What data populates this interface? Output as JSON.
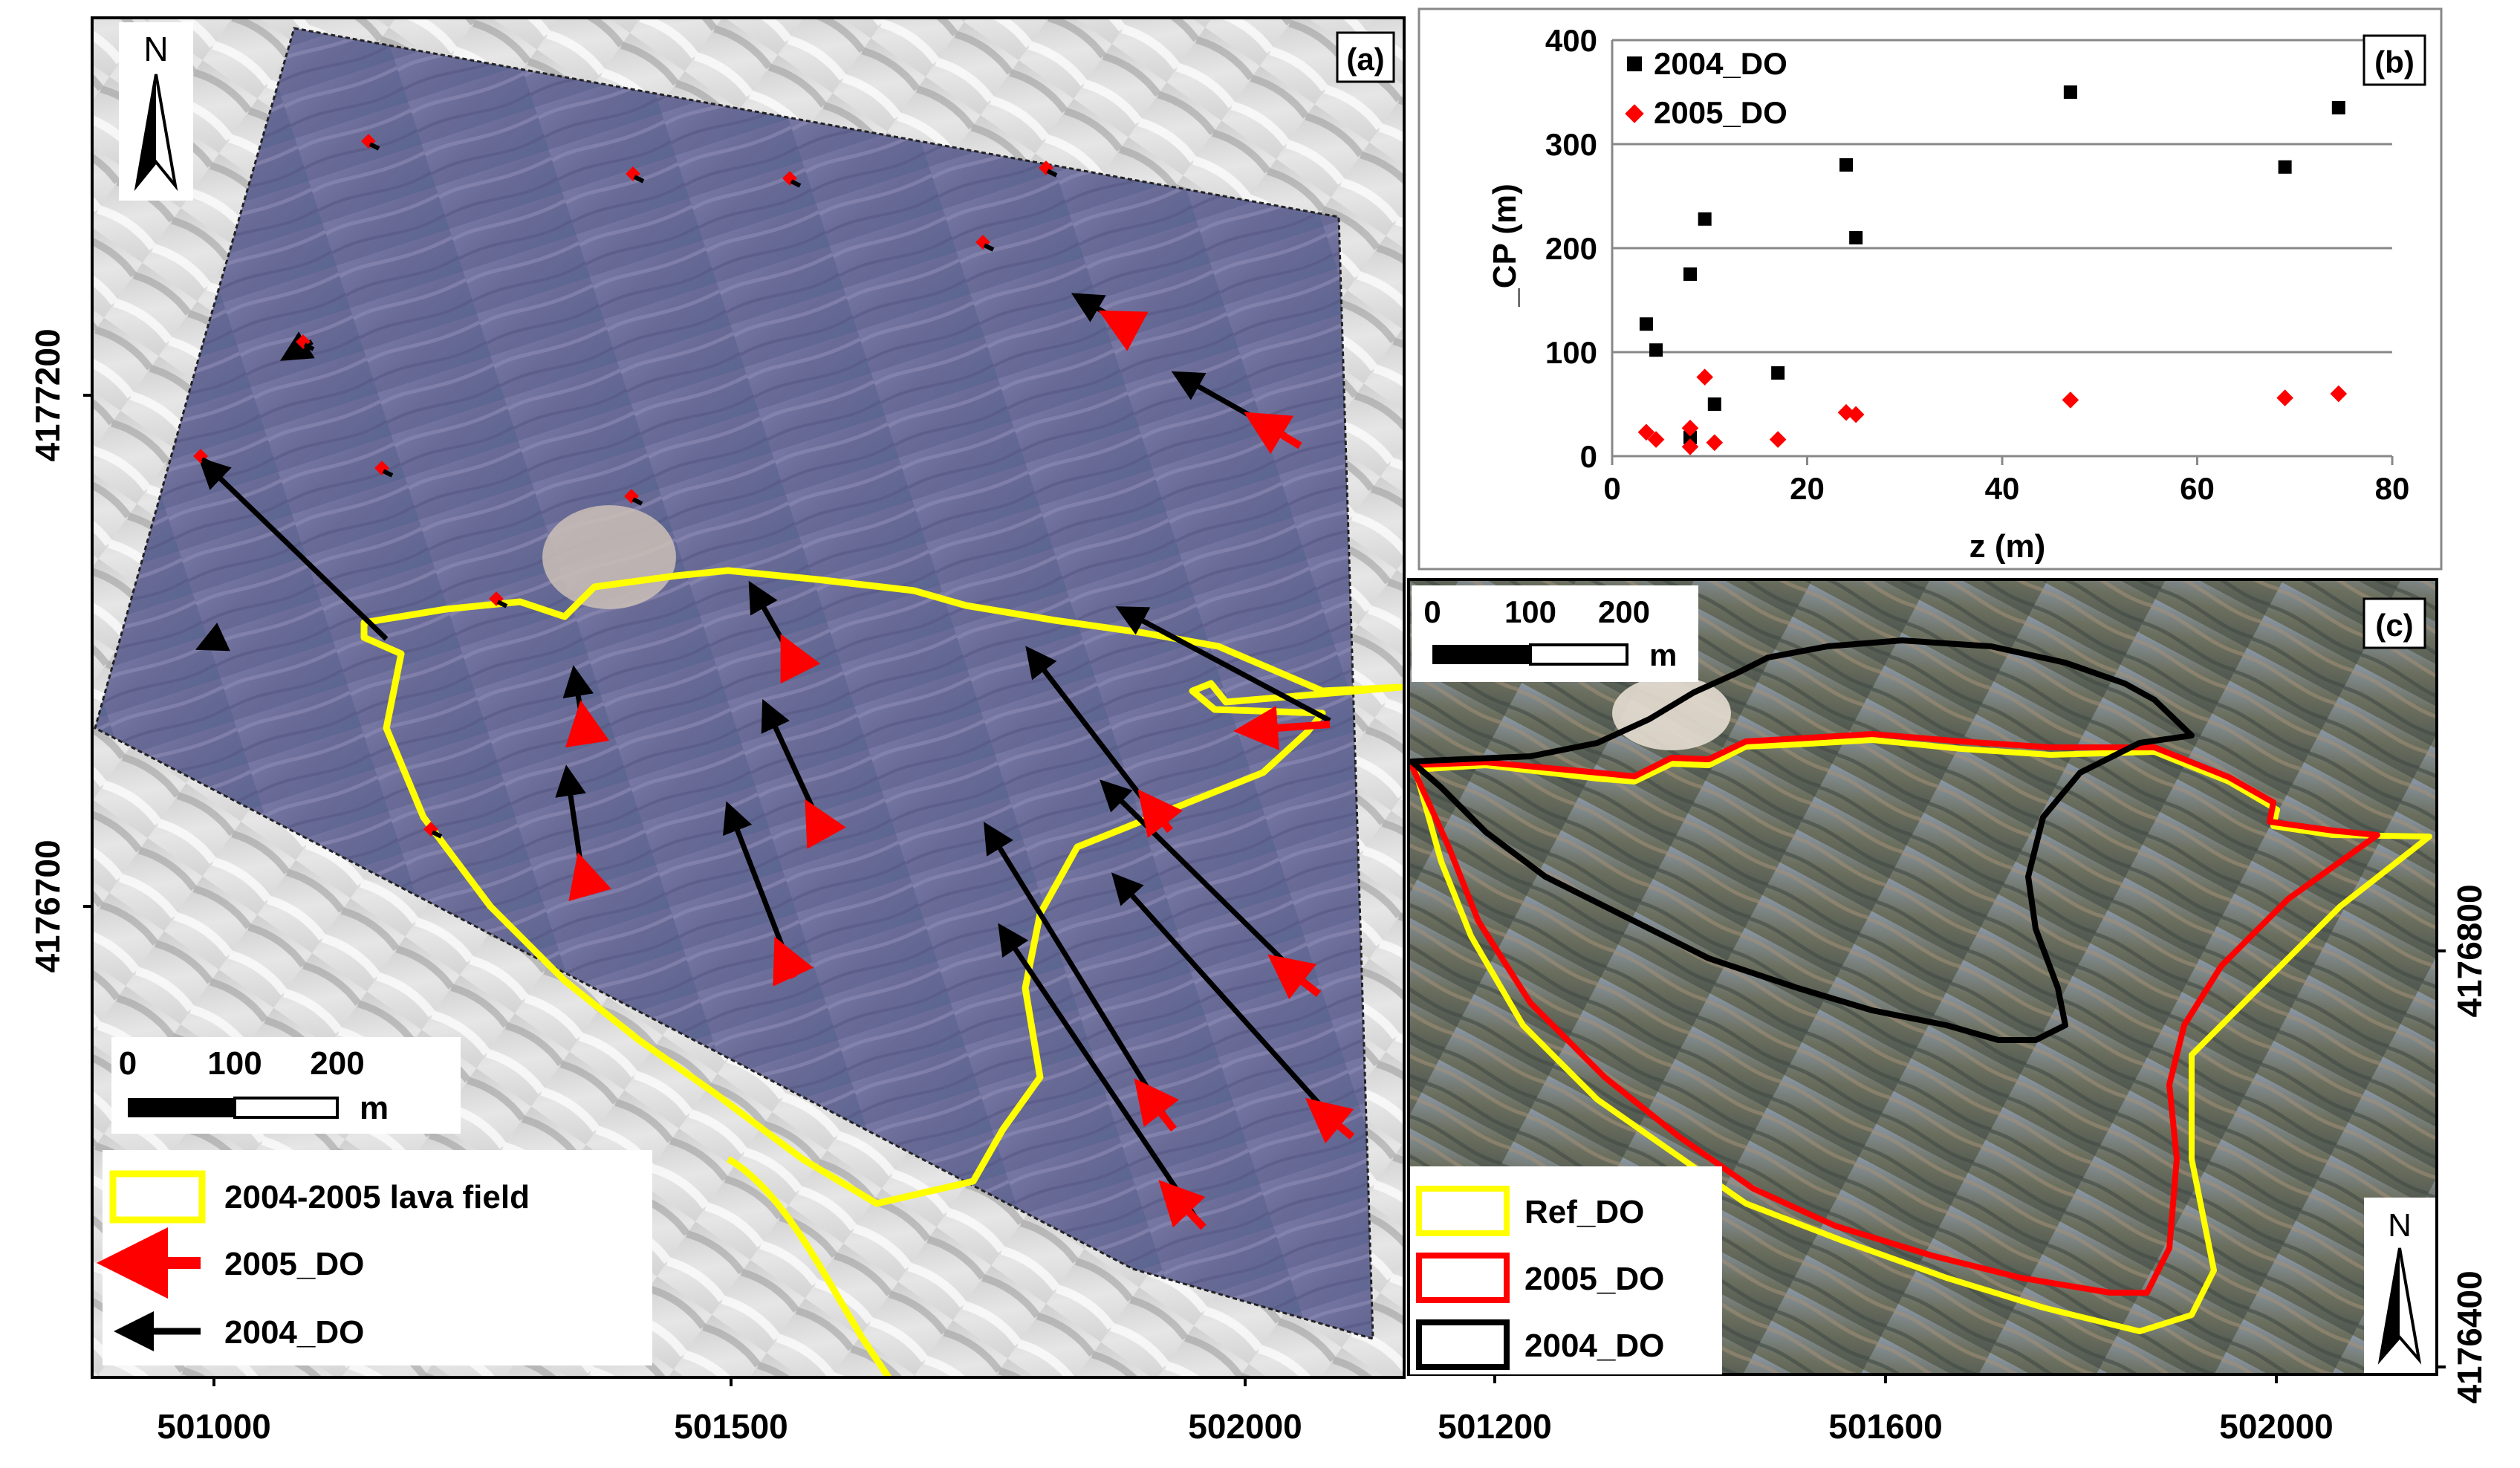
{
  "panel_a": {
    "label": "(a)",
    "north": "N",
    "y_tick_labels": [
      "4177200",
      "4176700"
    ],
    "x_tick_labels": [
      "501000",
      "501500",
      "502000"
    ],
    "scalebar": {
      "labels": [
        "0",
        "100",
        "200"
      ],
      "unit": "m"
    },
    "legend": [
      {
        "label": "2004-2005 lava field",
        "color": "#ffff00",
        "symbol": "box"
      },
      {
        "label": "2005_DO",
        "color": "#ff0000",
        "symbol": "arrow"
      },
      {
        "label": "2004_DO",
        "color": "#000000",
        "symbol": "arrow"
      }
    ],
    "colors": {
      "lava_outline": "#ffff00",
      "arrow_2005": "#ff0000",
      "arrow_2004": "#000000",
      "hillshade": "#d8d8d8",
      "image_tint": "#6c6c98"
    }
  },
  "panel_b": {
    "label": "(b)",
    "chart_data": {
      "type": "scatter",
      "xlabel": "z (m)",
      "ylabel": "_CP (m)",
      "xlim": [
        0,
        80
      ],
      "ylim": [
        0,
        400
      ],
      "x_ticks": [
        "0",
        "20",
        "40",
        "60",
        "80"
      ],
      "y_ticks": [
        "0",
        "100",
        "200",
        "300",
        "400"
      ],
      "grid": "horizontal",
      "legend_position": "top-left",
      "series": [
        {
          "name": "2004_DO",
          "color": "#000000",
          "marker": "square",
          "points": [
            [
              3.5,
              127
            ],
            [
              4.5,
              102
            ],
            [
              8,
              175
            ],
            [
              8,
              18
            ],
            [
              9.5,
              228
            ],
            [
              10.5,
              50
            ],
            [
              17,
              80
            ],
            [
              24,
              280
            ],
            [
              25,
              210
            ],
            [
              47,
              350
            ],
            [
              69,
              278
            ],
            [
              74.5,
              335
            ]
          ]
        },
        {
          "name": "2005_DO",
          "color": "#ff0000",
          "marker": "diamond",
          "points": [
            [
              3.5,
              23
            ],
            [
              4.5,
              16
            ],
            [
              8,
              27
            ],
            [
              8,
              9
            ],
            [
              9.5,
              76
            ],
            [
              10.5,
              13
            ],
            [
              17,
              16
            ],
            [
              24,
              42
            ],
            [
              25,
              40
            ],
            [
              47,
              54
            ],
            [
              69,
              56
            ],
            [
              74.5,
              60
            ]
          ]
        }
      ]
    }
  },
  "panel_c": {
    "label": "(c)",
    "north": "N",
    "y_tick_labels": [
      "4176800",
      "4176400"
    ],
    "x_tick_labels": [
      "501200",
      "501600",
      "502000"
    ],
    "scalebar": {
      "labels": [
        "0",
        "100",
        "200"
      ],
      "unit": "m"
    },
    "legend": [
      {
        "label": "Ref_DO",
        "color": "#ffff00"
      },
      {
        "label": "2005_DO",
        "color": "#ff0000"
      },
      {
        "label": "2004_DO",
        "color": "#000000"
      }
    ]
  }
}
